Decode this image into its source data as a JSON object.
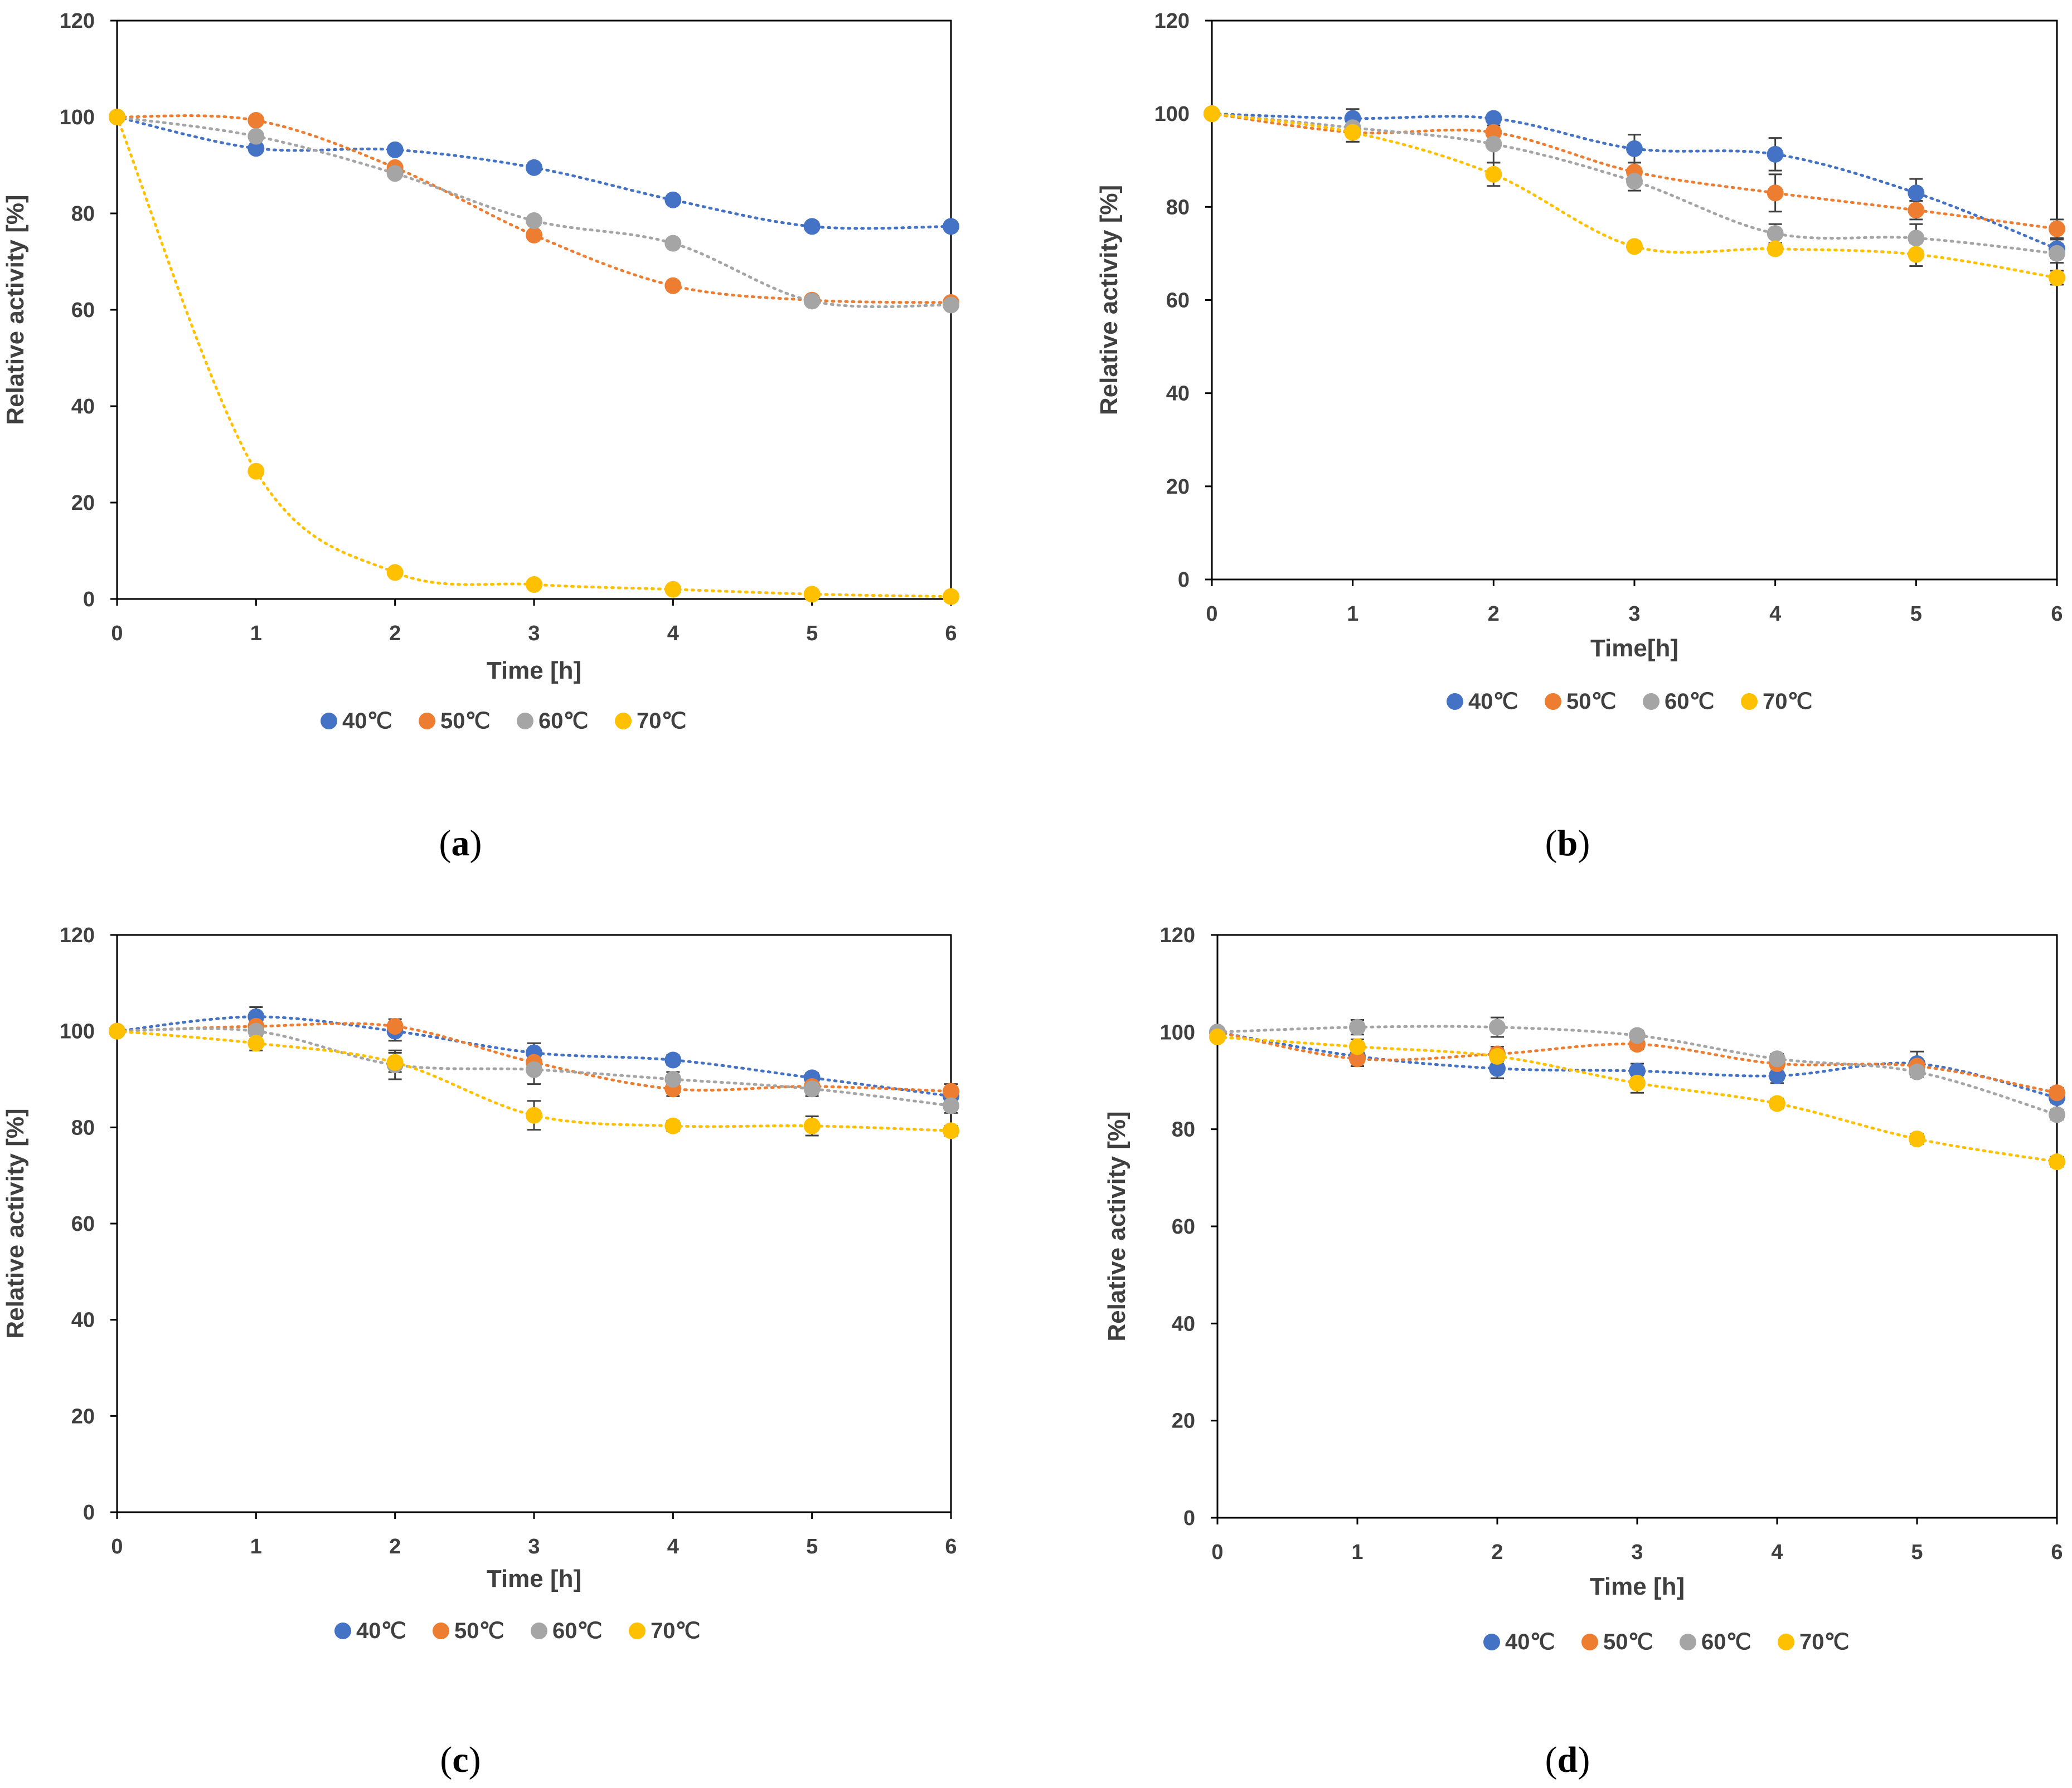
{
  "figure": {
    "series_colors": {
      "40°C": "#4472C4",
      "50°C": "#ED7D31",
      "60°C": "#A5A5A5",
      "70°C": "#FFC000"
    },
    "error_bar_color": "#404040"
  },
  "chart_data": [
    {
      "panel": "a",
      "type": "scatter",
      "trendlines": "dotted",
      "xlabel": "Time [h]",
      "ylabel": "Relative activity [%]",
      "xlim": [
        0,
        6
      ],
      "ylim": [
        0,
        120
      ],
      "xticks": [
        "0",
        "1",
        "2",
        "3",
        "4",
        "5",
        "6"
      ],
      "yticks": [
        "0",
        "20",
        "40",
        "60",
        "80",
        "100",
        "120"
      ],
      "legend": [
        "40℃",
        "50℃",
        "60℃",
        "70℃"
      ],
      "series": [
        {
          "name": "40°C",
          "x": [
            0,
            1,
            2,
            3,
            4,
            5,
            6
          ],
          "values": [
            100,
            93.5,
            93.2,
            89.5,
            82.8,
            77.3,
            77.3
          ],
          "err": [
            0,
            0,
            0,
            0,
            0,
            0,
            0
          ]
        },
        {
          "name": "50°C",
          "x": [
            0,
            1,
            2,
            3,
            4,
            5,
            6
          ],
          "values": [
            100,
            99.3,
            89.5,
            75.5,
            65,
            62,
            61.5
          ],
          "err": [
            0,
            0,
            0,
            0,
            0,
            0,
            0
          ]
        },
        {
          "name": "60°C",
          "x": [
            0,
            1,
            2,
            3,
            4,
            5,
            6
          ],
          "values": [
            100,
            96,
            88.3,
            78.5,
            73.8,
            61.8,
            61
          ],
          "err": [
            0,
            0,
            0,
            0,
            0,
            0,
            0
          ]
        },
        {
          "name": "70°C",
          "x": [
            0,
            1,
            2,
            3,
            4,
            5,
            6
          ],
          "values": [
            100,
            26.5,
            5.5,
            3,
            2,
            1,
            0.5
          ],
          "err": [
            0,
            0,
            0,
            0,
            0,
            0,
            0
          ]
        }
      ]
    },
    {
      "panel": "b",
      "type": "scatter",
      "trendlines": "dotted",
      "xlabel": "Time[h]",
      "ylabel": "Relative activity [%]",
      "xlim": [
        0,
        6
      ],
      "ylim": [
        0,
        120
      ],
      "xticks": [
        "0",
        "1",
        "2",
        "3",
        "4",
        "5",
        "6"
      ],
      "yticks": [
        "0",
        "20",
        "40",
        "60",
        "80",
        "100",
        "120"
      ],
      "legend": [
        "40℃",
        "50℃",
        "60℃",
        "70℃"
      ],
      "series": [
        {
          "name": "40°C",
          "x": [
            0,
            1,
            2,
            3,
            4,
            5,
            6
          ],
          "values": [
            100,
            99,
            99,
            92.5,
            91.3,
            83,
            71
          ],
          "err": [
            0,
            2,
            1,
            3,
            3.5,
            3,
            2
          ]
        },
        {
          "name": "50°C",
          "x": [
            0,
            1,
            2,
            3,
            4,
            5,
            6
          ],
          "values": [
            100,
            96,
            96,
            87.5,
            83,
            79.3,
            75.3
          ],
          "err": [
            0,
            2,
            2,
            2,
            4,
            2,
            2
          ]
        },
        {
          "name": "60°C",
          "x": [
            0,
            1,
            2,
            3,
            4,
            5,
            6
          ],
          "values": [
            100,
            97,
            93.5,
            85.5,
            74.3,
            73.3,
            70
          ],
          "err": [
            0,
            2,
            4,
            2,
            2,
            3,
            2
          ]
        },
        {
          "name": "70°C",
          "x": [
            0,
            1,
            2,
            3,
            4,
            5,
            6
          ],
          "values": [
            100,
            96,
            87,
            71.5,
            71,
            69.8,
            64.8
          ],
          "err": [
            0,
            2,
            2.5,
            1,
            1,
            2.5,
            1.5
          ]
        }
      ]
    },
    {
      "panel": "c",
      "type": "scatter",
      "trendlines": "dotted",
      "xlabel": "Time [h]",
      "ylabel": "Relative activity [%]",
      "xlim": [
        0,
        6
      ],
      "ylim": [
        0,
        120
      ],
      "xticks": [
        "0",
        "1",
        "2",
        "3",
        "4",
        "5",
        "6"
      ],
      "yticks": [
        "0",
        "20",
        "40",
        "60",
        "80",
        "100",
        "120"
      ],
      "legend": [
        "40℃",
        "50℃",
        "60℃",
        "70℃"
      ],
      "series": [
        {
          "name": "40°C",
          "x": [
            0,
            1,
            2,
            3,
            4,
            5,
            6
          ],
          "values": [
            100,
            103,
            100,
            95.5,
            94,
            90.3,
            86.5
          ],
          "err": [
            0,
            2,
            2,
            2,
            1,
            1,
            1
          ]
        },
        {
          "name": "50°C",
          "x": [
            0,
            1,
            2,
            3,
            4,
            5,
            6
          ],
          "values": [
            100,
            101,
            101,
            93.5,
            88,
            88.5,
            87.5
          ],
          "err": [
            0,
            1.5,
            1.5,
            1.5,
            1.5,
            1.5,
            1.5
          ]
        },
        {
          "name": "60°C",
          "x": [
            0,
            1,
            2,
            3,
            4,
            5,
            6
          ],
          "values": [
            100,
            100,
            93,
            92,
            90,
            88,
            84.5
          ],
          "err": [
            0,
            2,
            3,
            3,
            1.5,
            1.5,
            1.5
          ]
        },
        {
          "name": "70°C",
          "x": [
            0,
            1,
            2,
            3,
            4,
            5,
            6
          ],
          "values": [
            100,
            97.5,
            93.5,
            82.5,
            80.3,
            80.3,
            79.3
          ],
          "err": [
            0,
            1.5,
            2,
            3,
            1,
            2,
            1
          ]
        }
      ]
    },
    {
      "panel": "d",
      "type": "scatter",
      "trendlines": "dotted",
      "xlabel": "Time [h]",
      "ylabel": "Relative activity [%]",
      "xlim": [
        0,
        6
      ],
      "ylim": [
        0,
        120
      ],
      "xticks": [
        "0",
        "1",
        "2",
        "3",
        "4",
        "5",
        "6"
      ],
      "yticks": [
        "0",
        "20",
        "40",
        "60",
        "80",
        "100",
        "120"
      ],
      "legend": [
        "40℃",
        "50℃",
        "60℃",
        "70℃"
      ],
      "series": [
        {
          "name": "40°C",
          "x": [
            0,
            1,
            2,
            3,
            4,
            5,
            6
          ],
          "values": [
            100,
            95,
            92.5,
            92,
            91,
            93.5,
            86.5
          ],
          "err": [
            0,
            2,
            2,
            1.5,
            1.5,
            2.5,
            1
          ]
        },
        {
          "name": "50°C",
          "x": [
            0,
            1,
            2,
            3,
            4,
            5,
            6
          ],
          "values": [
            100,
            94.5,
            95.5,
            97.5,
            93.5,
            93,
            87.5
          ],
          "err": [
            0,
            1.5,
            1.5,
            1,
            1,
            1,
            1
          ]
        },
        {
          "name": "60°C",
          "x": [
            0,
            1,
            2,
            3,
            4,
            5,
            6
          ],
          "values": [
            100,
            101,
            101,
            99.3,
            94.5,
            91.8,
            83
          ],
          "err": [
            0,
            1.5,
            2,
            1,
            1,
            1,
            1
          ]
        },
        {
          "name": "70°C",
          "x": [
            0,
            1,
            2,
            3,
            4,
            5,
            6
          ],
          "values": [
            99,
            97,
            95,
            89.5,
            85.3,
            78,
            73.3
          ],
          "err": [
            0,
            1.5,
            1.5,
            2,
            1,
            1,
            1
          ]
        }
      ]
    }
  ],
  "panel_labels": {
    "a": {
      "open": "(",
      "letter": "a",
      "close": ")"
    },
    "b": {
      "open": "(",
      "letter": "b",
      "close": ")"
    },
    "c": {
      "open": "(",
      "letter": "c",
      "close": ")"
    },
    "d": {
      "open": "(",
      "letter": "d",
      "close": ")"
    }
  }
}
